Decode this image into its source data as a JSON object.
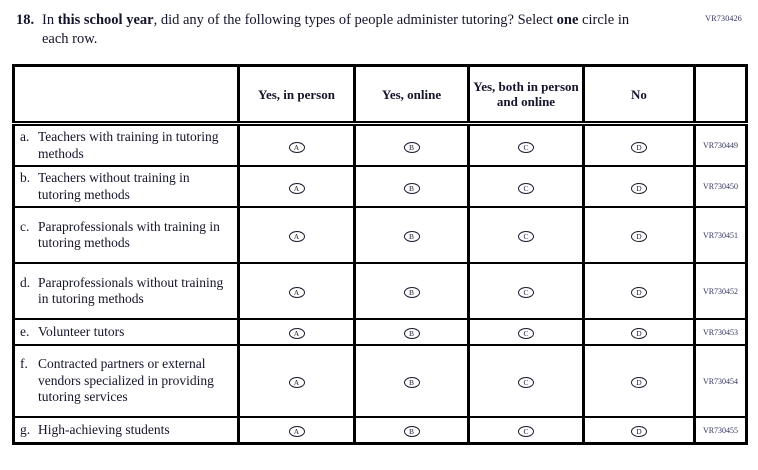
{
  "page": {
    "top_code": "VR730426"
  },
  "question": {
    "number": "18.",
    "segments": [
      {
        "text": "In ",
        "bold": false
      },
      {
        "text": "this school year",
        "bold": true
      },
      {
        "text": ", did any of the following types of people administer tutoring? Select ",
        "bold": false
      },
      {
        "text": "one",
        "bold": true
      },
      {
        "text": " circle in each row.",
        "bold": false
      }
    ]
  },
  "table": {
    "columns": [
      "",
      "Yes, in person",
      "Yes, online",
      "Yes, both in person and online",
      "No",
      ""
    ],
    "options": [
      "A",
      "B",
      "C",
      "D"
    ],
    "rows": [
      {
        "letter": "a.",
        "label": "Teachers with training in tutoring methods",
        "code": "VR730449",
        "lines": 2
      },
      {
        "letter": "b.",
        "label": "Teachers without training in tutoring methods",
        "code": "VR730450",
        "lines": 2
      },
      {
        "letter": "c.",
        "label": "Paraprofessionals with training in tutoring methods",
        "code": "VR730451",
        "lines": 3
      },
      {
        "letter": "d.",
        "label": "Paraprofessionals without training in tutoring methods",
        "code": "VR730452",
        "lines": 3
      },
      {
        "letter": "e.",
        "label": "Volunteer tutors",
        "code": "VR730453",
        "lines": 1
      },
      {
        "letter": "f.",
        "label": "Contracted partners or external vendors specialized in providing tutoring services",
        "code": "VR730454",
        "lines": 4
      },
      {
        "letter": "g.",
        "label": "High-achieving students",
        "code": "VR730455",
        "lines": 1
      }
    ]
  }
}
